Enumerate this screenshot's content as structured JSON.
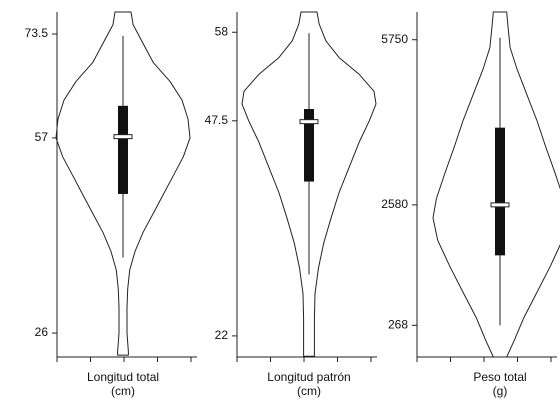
{
  "chart_data": [
    {
      "type": "violin",
      "xlabel": [
        "Longitud total",
        "(cm)"
      ],
      "ylim": [
        22.2,
        77
      ],
      "yticks": [
        26,
        57,
        73.5
      ],
      "box": {
        "whisker_low": 38,
        "q1": 48.1,
        "median": 57.2,
        "q3": 62.1,
        "whisker_high": 73.2
      },
      "density": {
        "y": [
          77,
          75,
          72,
          69,
          66,
          63,
          60,
          57,
          54,
          51,
          48,
          45,
          42,
          39,
          36,
          33,
          30,
          26,
          23,
          22.5
        ],
        "width": [
          0.12,
          0.15,
          0.3,
          0.45,
          0.7,
          0.88,
          0.97,
          1.0,
          0.9,
          0.75,
          0.6,
          0.45,
          0.3,
          0.18,
          0.1,
          0.07,
          0.06,
          0.06,
          0.08,
          0.08
        ]
      }
    },
    {
      "type": "violin",
      "xlabel": [
        "Longitud patrón",
        "(cm)"
      ],
      "ylim": [
        19.5,
        60.4
      ],
      "yticks": [
        22,
        47.5,
        58
      ],
      "box": {
        "whisker_low": 29.3,
        "q1": 40.3,
        "median": 47.4,
        "q3": 48.9,
        "whisker_high": 57.9
      },
      "density": {
        "y": [
          60.4,
          59,
          57,
          55,
          53,
          51,
          49.5,
          47.5,
          45,
          42,
          39,
          36,
          33,
          30,
          27,
          24,
          21,
          19.6
        ],
        "width": [
          0.12,
          0.15,
          0.25,
          0.45,
          0.75,
          0.97,
          1.0,
          0.9,
          0.75,
          0.6,
          0.45,
          0.33,
          0.22,
          0.14,
          0.09,
          0.08,
          0.08,
          0.08
        ]
      }
    },
    {
      "type": "violin",
      "xlabel": [
        "Peso total",
        "(g)"
      ],
      "ylim": [
        -340,
        6282
      ],
      "yticks": [
        268,
        2580,
        5750
      ],
      "box": {
        "whisker_low": 268,
        "q1": 1611,
        "median": 2580,
        "q3": 4062,
        "whisker_high": 5788
      },
      "density": {
        "y": [
          6282,
          6000,
          5600,
          5200,
          4700,
          4200,
          3700,
          3200,
          2700,
          2330,
          1900,
          1400,
          900,
          400,
          0,
          -340
        ],
        "width": [
          0.1,
          0.12,
          0.15,
          0.25,
          0.4,
          0.55,
          0.68,
          0.82,
          0.95,
          1.0,
          0.93,
          0.75,
          0.55,
          0.35,
          0.22,
          0.1
        ]
      }
    }
  ]
}
